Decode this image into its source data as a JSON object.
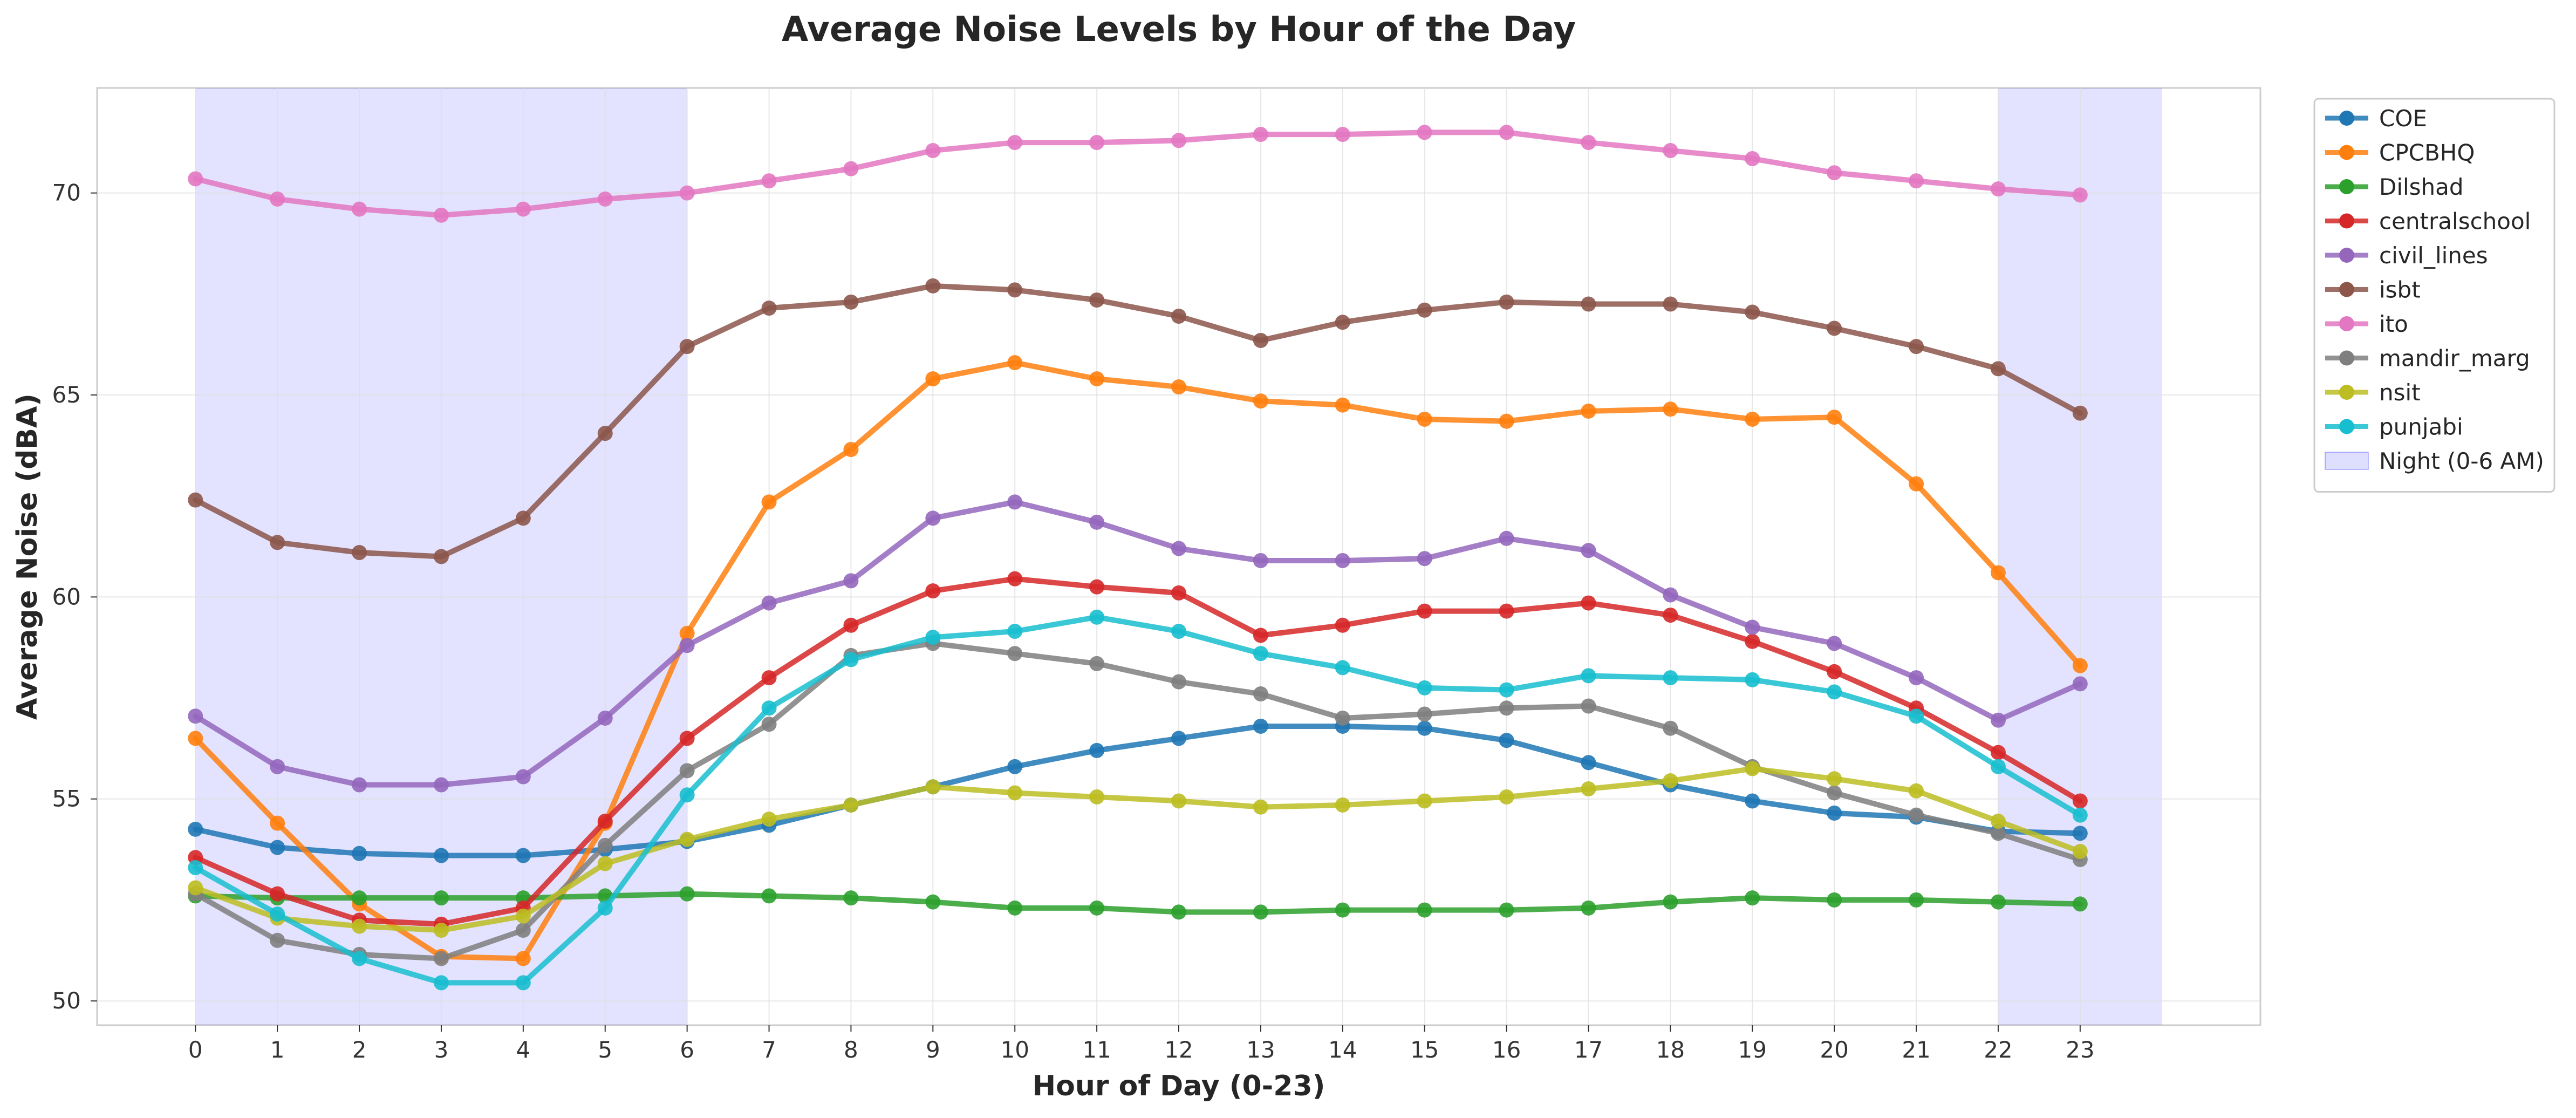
{
  "chart_data": {
    "type": "line",
    "title": "Average Noise Levels by Hour of the Day",
    "xlabel": "Hour of Day (0-23)",
    "ylabel": "Average Noise (dBA)",
    "x": [
      0,
      1,
      2,
      3,
      4,
      5,
      6,
      7,
      8,
      9,
      10,
      11,
      12,
      13,
      14,
      15,
      16,
      17,
      18,
      19,
      20,
      21,
      22,
      23
    ],
    "xlim": [
      -1.2,
      25.2
    ],
    "ylim": [
      49.4,
      72.6
    ],
    "yticks": [
      50,
      55,
      60,
      65,
      70
    ],
    "grid": true,
    "legend_position": "outside-top-right",
    "shaded_regions": [
      {
        "name": "Night (0-6 AM)",
        "from": 0,
        "to": 6,
        "color": "#0000ff",
        "opacity": 0.11
      },
      {
        "name": "",
        "from": 22,
        "to": 24,
        "color": "#0000ff",
        "opacity": 0.11
      }
    ],
    "series": [
      {
        "name": "COE",
        "color": "#1f77b4",
        "values": [
          54.25,
          53.8,
          53.65,
          53.6,
          53.6,
          53.75,
          53.95,
          54.35,
          54.85,
          55.3,
          55.8,
          56.2,
          56.5,
          56.8,
          56.8,
          56.75,
          56.45,
          55.9,
          55.35,
          54.95,
          54.65,
          54.55,
          54.2,
          54.15
        ]
      },
      {
        "name": "CPCBHQ",
        "color": "#ff7f0e",
        "values": [
          56.5,
          54.4,
          52.4,
          51.1,
          51.05,
          54.4,
          59.1,
          62.35,
          63.65,
          65.4,
          65.8,
          65.4,
          65.2,
          64.85,
          64.75,
          64.4,
          64.35,
          64.6,
          64.65,
          64.4,
          64.45,
          62.8,
          60.6,
          58.3
        ]
      },
      {
        "name": "Dilshad",
        "color": "#2ca02c",
        "values": [
          52.6,
          52.55,
          52.55,
          52.55,
          52.55,
          52.6,
          52.65,
          52.6,
          52.55,
          52.45,
          52.3,
          52.3,
          52.2,
          52.2,
          52.25,
          52.25,
          52.25,
          52.3,
          52.45,
          52.55,
          52.5,
          52.5,
          52.45,
          52.4
        ]
      },
      {
        "name": "centralschool",
        "color": "#d62728",
        "values": [
          53.55,
          52.65,
          52.0,
          51.9,
          52.3,
          54.45,
          56.5,
          58.0,
          59.3,
          60.15,
          60.45,
          60.25,
          60.1,
          59.05,
          59.3,
          59.65,
          59.65,
          59.85,
          59.55,
          58.9,
          58.15,
          57.25,
          56.15,
          54.95
        ]
      },
      {
        "name": "civil_lines",
        "color": "#9467bd",
        "values": [
          57.05,
          55.8,
          55.35,
          55.35,
          55.55,
          57.0,
          58.8,
          59.85,
          60.4,
          61.95,
          62.35,
          61.85,
          61.2,
          60.9,
          60.9,
          60.95,
          61.45,
          61.15,
          60.05,
          59.25,
          58.85,
          58.0,
          56.95,
          57.85
        ]
      },
      {
        "name": "isbt",
        "color": "#8c564b",
        "values": [
          62.4,
          61.35,
          61.1,
          61.0,
          61.95,
          64.05,
          66.2,
          67.15,
          67.3,
          67.7,
          67.6,
          67.35,
          66.95,
          66.35,
          66.8,
          67.1,
          67.3,
          67.25,
          67.25,
          67.05,
          66.65,
          66.2,
          65.65,
          64.55
        ]
      },
      {
        "name": "ito",
        "color": "#e377c2",
        "values": [
          70.35,
          69.85,
          69.6,
          69.45,
          69.6,
          69.85,
          70.0,
          70.3,
          70.6,
          71.05,
          71.25,
          71.25,
          71.3,
          71.45,
          71.45,
          71.5,
          71.5,
          71.25,
          71.05,
          70.85,
          70.5,
          70.3,
          70.1,
          69.95
        ]
      },
      {
        "name": "mandir_marg",
        "color": "#7f7f7f",
        "values": [
          52.65,
          51.5,
          51.15,
          51.05,
          51.75,
          53.85,
          55.7,
          56.85,
          58.55,
          58.85,
          58.6,
          58.35,
          57.9,
          57.6,
          57.0,
          57.1,
          57.25,
          57.3,
          56.75,
          55.8,
          55.15,
          54.6,
          54.15,
          53.5
        ]
      },
      {
        "name": "nsit",
        "color": "#bcbd22",
        "values": [
          52.8,
          52.05,
          51.85,
          51.75,
          52.1,
          53.4,
          54.0,
          54.5,
          54.85,
          55.3,
          55.15,
          55.05,
          54.95,
          54.8,
          54.85,
          54.95,
          55.05,
          55.25,
          55.45,
          55.75,
          55.5,
          55.2,
          54.45,
          53.7
        ]
      },
      {
        "name": "punjabi",
        "color": "#17becf",
        "values": [
          53.3,
          52.15,
          51.05,
          50.45,
          50.45,
          52.3,
          55.1,
          57.25,
          58.45,
          59.0,
          59.15,
          59.5,
          59.15,
          58.6,
          58.25,
          57.75,
          57.7,
          58.05,
          58.0,
          57.95,
          57.65,
          57.05,
          55.8,
          54.6
        ]
      }
    ]
  }
}
